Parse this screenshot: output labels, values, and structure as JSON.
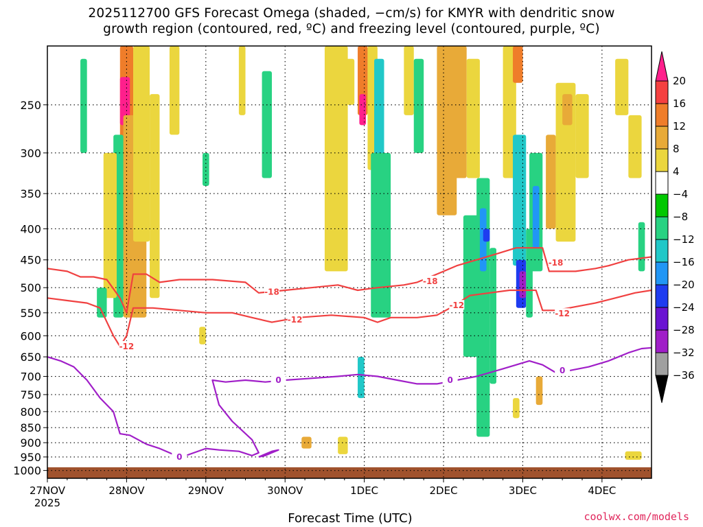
{
  "title_line1": "2025112700 GFS Forecast Omega (shaded, −cm/s) for KMYR with dendritic snow",
  "title_line2": "growth region (contoured, red, ºC) and freezing level (contoured, purple, ºC)",
  "credit": "coolwx.com/models",
  "chart_data": {
    "type": "heatmap",
    "title": "2025112700 GFS Forecast Omega (shaded, −cm/s) for KMYR with dendritic snow growth region (contoured, red, ºC) and freezing level (contoured, purple, ºC)",
    "xlabel": "Forecast Time (UTC)",
    "ylabel": "",
    "x_ticks": [
      {
        "label": "27NOV",
        "sub": "2025",
        "t": 0
      },
      {
        "label": "28NOV",
        "t": 24
      },
      {
        "label": "29NOV",
        "t": 48
      },
      {
        "label": "30NOV",
        "t": 72
      },
      {
        "label": "1DEC",
        "t": 96
      },
      {
        "label": "2DEC",
        "t": 120
      },
      {
        "label": "3DEC",
        "t": 144
      },
      {
        "label": "4DEC",
        "t": 168
      }
    ],
    "xlim": [
      0,
      183
    ],
    "y_scale": "log-pressure",
    "y_ticks": [
      250,
      300,
      350,
      400,
      450,
      500,
      550,
      600,
      650,
      700,
      750,
      800,
      850,
      900,
      950,
      1000
    ],
    "ylim": [
      1030,
      200
    ],
    "grid": true,
    "colorbar": {
      "labels": [
        "20",
        "16",
        "12",
        "8",
        "4",
        "−4",
        "−8",
        "−12",
        "−16",
        "−20",
        "−24",
        "−28",
        "−32",
        "−36"
      ],
      "colors": [
        "#ff1f8c",
        "#f54040",
        "#ef7d2a",
        "#e8aa38",
        "#ebd63e",
        "#ffffff",
        "#00c800",
        "#28d282",
        "#21c8c8",
        "#2196f5",
        "#1e3cf0",
        "#6a14d2",
        "#a01ec8",
        "#a0a0a0",
        "#000000"
      ]
    },
    "omega_cells": [
      {
        "t0": 10,
        "t1": 12,
        "p0": 210,
        "p1": 300,
        "v": -8
      },
      {
        "t0": 22,
        "t1": 26,
        "p0": 200,
        "p1": 430,
        "v": 14
      },
      {
        "t0": 22,
        "t1": 25,
        "p0": 225,
        "p1": 270,
        "v": 22
      },
      {
        "t0": 23,
        "t1": 30,
        "p0": 260,
        "p1": 560,
        "v": 8
      },
      {
        "t0": 20,
        "t1": 23,
        "p0": 280,
        "p1": 560,
        "v": -8
      },
      {
        "t0": 17,
        "t1": 21,
        "p0": 300,
        "p1": 520,
        "v": 6
      },
      {
        "t0": 26,
        "t1": 31,
        "p0": 200,
        "p1": 420,
        "v": 5
      },
      {
        "t0": 31,
        "t1": 34,
        "p0": 240,
        "p1": 520,
        "v": 5
      },
      {
        "t0": 15,
        "t1": 18,
        "p0": 500,
        "p1": 560,
        "v": -8
      },
      {
        "t0": 37,
        "t1": 40,
        "p0": 200,
        "p1": 280,
        "v": 5
      },
      {
        "t0": 47,
        "t1": 49,
        "p0": 300,
        "p1": 340,
        "v": -8
      },
      {
        "t0": 58,
        "t1": 60,
        "p0": 200,
        "p1": 260,
        "v": 5
      },
      {
        "t0": 65,
        "t1": 68,
        "p0": 220,
        "p1": 330,
        "v": -8
      },
      {
        "t0": 84,
        "t1": 91,
        "p0": 200,
        "p1": 470,
        "v": 5
      },
      {
        "t0": 90,
        "t1": 93,
        "p0": 210,
        "p1": 250,
        "v": 4
      },
      {
        "t0": 94,
        "t1": 97,
        "p0": 200,
        "p1": 260,
        "v": 12
      },
      {
        "t0": 94.5,
        "t1": 96.5,
        "p0": 240,
        "p1": 270,
        "v": 22
      },
      {
        "t0": 97,
        "t1": 100,
        "p0": 200,
        "p1": 320,
        "v": 6
      },
      {
        "t0": 99,
        "t1": 102,
        "p0": 210,
        "p1": 330,
        "v": -14
      },
      {
        "t0": 98,
        "t1": 104,
        "p0": 300,
        "p1": 560,
        "v": -8
      },
      {
        "t0": 108,
        "t1": 111,
        "p0": 200,
        "p1": 260,
        "v": 5
      },
      {
        "t0": 111,
        "t1": 114,
        "p0": 210,
        "p1": 300,
        "v": -8
      },
      {
        "t0": 118,
        "t1": 124,
        "p0": 200,
        "p1": 380,
        "v": 8
      },
      {
        "t0": 123,
        "t1": 127,
        "p0": 200,
        "p1": 330,
        "v": 11
      },
      {
        "t0": 127,
        "t1": 131,
        "p0": 210,
        "p1": 330,
        "v": 5
      },
      {
        "t0": 126,
        "t1": 131,
        "p0": 380,
        "p1": 650,
        "v": -8
      },
      {
        "t0": 130,
        "t1": 134,
        "p0": 330,
        "p1": 880,
        "v": -9
      },
      {
        "t0": 131,
        "t1": 133,
        "p0": 370,
        "p1": 470,
        "v": -17
      },
      {
        "t0": 132,
        "t1": 134,
        "p0": 400,
        "p1": 420,
        "v": -22
      },
      {
        "t0": 134,
        "t1": 136,
        "p0": 430,
        "p1": 720,
        "v": -8
      },
      {
        "t0": 138,
        "t1": 142,
        "p0": 200,
        "p1": 330,
        "v": 5
      },
      {
        "t0": 141,
        "t1": 144,
        "p0": 200,
        "p1": 230,
        "v": 14
      },
      {
        "t0": 141,
        "t1": 145,
        "p0": 280,
        "p1": 460,
        "v": -12
      },
      {
        "t0": 142,
        "t1": 145,
        "p0": 450,
        "p1": 540,
        "v": -22
      },
      {
        "t0": 143,
        "t1": 145,
        "p0": 470,
        "p1": 520,
        "v": -29
      },
      {
        "t0": 145,
        "t1": 147,
        "p0": 400,
        "p1": 560,
        "v": -10
      },
      {
        "t0": 146,
        "t1": 150,
        "p0": 300,
        "p1": 470,
        "v": -9
      },
      {
        "t0": 147,
        "t1": 149,
        "p0": 340,
        "p1": 430,
        "v": -16
      },
      {
        "t0": 151,
        "t1": 154,
        "p0": 280,
        "p1": 400,
        "v": 10
      },
      {
        "t0": 154,
        "t1": 160,
        "p0": 230,
        "p1": 420,
        "v": 6
      },
      {
        "t0": 156,
        "t1": 159,
        "p0": 240,
        "p1": 270,
        "v": 10
      },
      {
        "t0": 160,
        "t1": 164,
        "p0": 240,
        "p1": 330,
        "v": 5
      },
      {
        "t0": 172,
        "t1": 176,
        "p0": 210,
        "p1": 260,
        "v": 5
      },
      {
        "t0": 176,
        "t1": 180,
        "p0": 260,
        "p1": 330,
        "v": 5
      },
      {
        "t0": 179,
        "t1": 181,
        "p0": 390,
        "p1": 470,
        "v": -8
      },
      {
        "t0": 46,
        "t1": 48,
        "p0": 580,
        "p1": 620,
        "v": 4
      },
      {
        "t0": 77,
        "t1": 80,
        "p0": 880,
        "p1": 920,
        "v": 9
      },
      {
        "t0": 88,
        "t1": 91,
        "p0": 880,
        "p1": 940,
        "v": 6
      },
      {
        "t0": 94,
        "t1": 96,
        "p0": 650,
        "p1": 760,
        "v": -12
      },
      {
        "t0": 141,
        "t1": 143,
        "p0": 760,
        "p1": 820,
        "v": 6
      },
      {
        "t0": 148,
        "t1": 150,
        "p0": 700,
        "p1": 780,
        "v": 8
      },
      {
        "t0": 175,
        "t1": 180,
        "p0": 930,
        "p1": 960,
        "v": 5
      }
    ],
    "contours": [
      {
        "name": "-18",
        "color": "#f04040",
        "label": "-18",
        "points": [
          [
            0,
            465
          ],
          [
            6,
            470
          ],
          [
            10,
            480
          ],
          [
            14,
            480
          ],
          [
            18,
            485
          ],
          [
            22,
            520
          ],
          [
            24,
            550
          ],
          [
            26,
            475
          ],
          [
            30,
            475
          ],
          [
            34,
            490
          ],
          [
            40,
            485
          ],
          [
            50,
            485
          ],
          [
            60,
            490
          ],
          [
            64,
            510
          ],
          [
            72,
            505
          ],
          [
            80,
            500
          ],
          [
            88,
            495
          ],
          [
            94,
            505
          ],
          [
            100,
            500
          ],
          [
            108,
            495
          ],
          [
            112,
            490
          ],
          [
            118,
            475
          ],
          [
            124,
            460
          ],
          [
            130,
            450
          ],
          [
            136,
            440
          ],
          [
            142,
            430
          ],
          [
            150,
            430
          ],
          [
            152,
            470
          ],
          [
            156,
            470
          ],
          [
            160,
            470
          ],
          [
            166,
            465
          ],
          [
            170,
            460
          ],
          [
            176,
            450
          ],
          [
            183,
            445
          ]
        ],
        "labels": [
          [
            68,
            508
          ],
          [
            116,
            488
          ],
          [
            154,
            455
          ]
        ]
      },
      {
        "name": "-12",
        "color": "#f04040",
        "label": "-12",
        "points": [
          [
            0,
            520
          ],
          [
            6,
            525
          ],
          [
            12,
            530
          ],
          [
            16,
            540
          ],
          [
            20,
            600
          ],
          [
            22,
            625
          ],
          [
            24,
            600
          ],
          [
            26,
            540
          ],
          [
            32,
            540
          ],
          [
            40,
            545
          ],
          [
            48,
            550
          ],
          [
            56,
            550
          ],
          [
            62,
            560
          ],
          [
            68,
            570
          ],
          [
            76,
            560
          ],
          [
            86,
            555
          ],
          [
            96,
            560
          ],
          [
            100,
            570
          ],
          [
            104,
            560
          ],
          [
            112,
            560
          ],
          [
            118,
            555
          ],
          [
            122,
            540
          ],
          [
            128,
            515
          ],
          [
            134,
            510
          ],
          [
            140,
            505
          ],
          [
            148,
            505
          ],
          [
            150,
            545
          ],
          [
            154,
            545
          ],
          [
            158,
            540
          ],
          [
            166,
            530
          ],
          [
            172,
            520
          ],
          [
            178,
            510
          ],
          [
            183,
            505
          ]
        ],
        "labels": [
          [
            24,
            625
          ],
          [
            75,
            565
          ],
          [
            124,
            535
          ],
          [
            156,
            552
          ]
        ]
      },
      {
        "name": "0",
        "color": "#a01ec8",
        "label": "0",
        "points": [
          [
            0,
            650
          ],
          [
            4,
            660
          ],
          [
            8,
            675
          ],
          [
            12,
            710
          ],
          [
            16,
            760
          ],
          [
            20,
            800
          ],
          [
            22,
            870
          ],
          [
            25,
            875
          ],
          [
            30,
            905
          ],
          [
            34,
            920
          ],
          [
            38,
            940
          ],
          [
            42,
            945
          ],
          [
            48,
            920
          ],
          [
            52,
            925
          ],
          [
            58,
            930
          ],
          [
            62,
            945
          ],
          [
            64,
            935
          ],
          [
            62,
            890
          ],
          [
            56,
            830
          ],
          [
            52,
            780
          ],
          [
            50,
            710
          ],
          [
            54,
            715
          ],
          [
            60,
            710
          ],
          [
            66,
            715
          ],
          [
            72,
            710
          ],
          [
            80,
            705
          ],
          [
            88,
            700
          ],
          [
            94,
            695
          ],
          [
            100,
            700
          ],
          [
            106,
            710
          ],
          [
            112,
            720
          ],
          [
            118,
            720
          ],
          [
            124,
            710
          ],
          [
            130,
            700
          ],
          [
            134,
            690
          ],
          [
            138,
            680
          ],
          [
            142,
            670
          ],
          [
            146,
            660
          ],
          [
            150,
            670
          ],
          [
            154,
            690
          ],
          [
            158,
            685
          ],
          [
            164,
            675
          ],
          [
            170,
            660
          ],
          [
            176,
            640
          ],
          [
            180,
            630
          ],
          [
            183,
            628
          ]
        ],
        "labels": [
          [
            40,
            950
          ],
          [
            70,
            710
          ],
          [
            122,
            710
          ],
          [
            156,
            685
          ]
        ]
      },
      {
        "name": "0-loop",
        "color": "#a01ec8",
        "label": "0",
        "points": [
          [
            64,
            950
          ],
          [
            68,
            930
          ],
          [
            70,
            925
          ],
          [
            68,
            935
          ],
          [
            66,
            945
          ],
          [
            64,
            950
          ]
        ],
        "labels": []
      }
    ]
  }
}
